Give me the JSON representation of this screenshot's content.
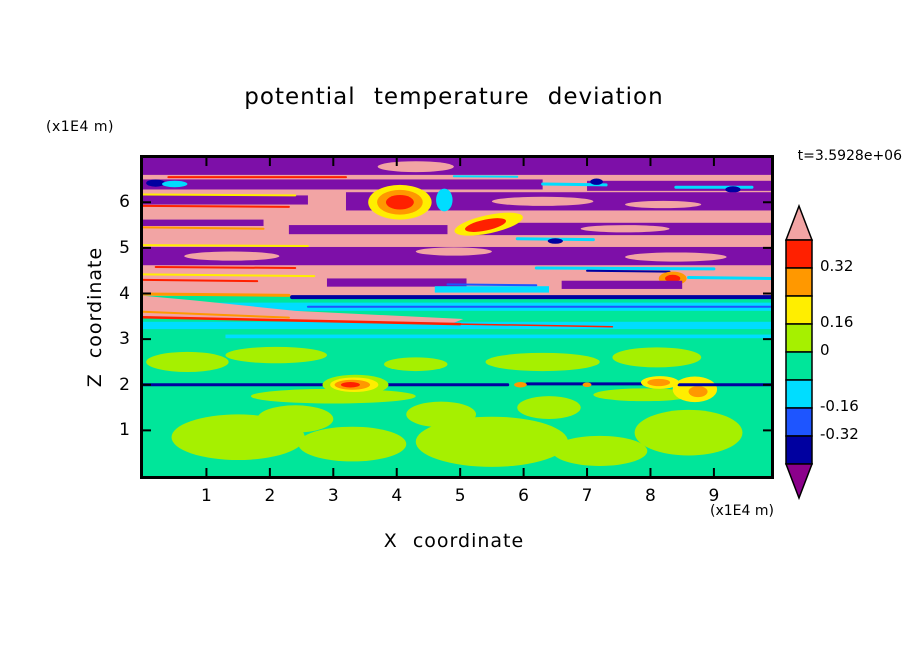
{
  "palette": {
    "salmon": "#f2a4a4",
    "red": "#ff2000",
    "orange": "#ff9800",
    "yellow": "#ffee00",
    "greenyellow": "#a6f000",
    "springgreen": "#00e69a",
    "cyan": "#00ddff",
    "blue": "#1e55ff",
    "navy": "#0000a0",
    "purple": "#7d0fa8",
    "magenta_purple": "#8b008b",
    "frame": "#000000",
    "background": "#ffffff"
  },
  "chart_data": {
    "type": "heatmap",
    "title": "potential temperature deviation",
    "xlabel": "X coordinate",
    "ylabel": "Z coordinate",
    "x_unit_label": "(x1E4 m)",
    "y_unit_label": "(x1E4 m)",
    "timestamp": "t=3.5928e+06",
    "xlim": [
      0,
      9.9
    ],
    "zlim": [
      0,
      6.97
    ],
    "x_ticks": [
      1,
      2,
      3,
      4,
      5,
      6,
      7,
      8,
      9
    ],
    "y_ticks": [
      1,
      2,
      3,
      4,
      5,
      6
    ],
    "grid": false,
    "colorbar": {
      "orientation": "vertical",
      "position": "right",
      "segments": [
        "red",
        "orange",
        "yellow",
        "greenyellow",
        "springgreen",
        "cyan",
        "blue",
        "navy"
      ],
      "top_arrow": "salmon",
      "bottom_arrow": "magenta_purple",
      "labels": [
        {
          "text": "0.32",
          "boundary": 1
        },
        {
          "text": "0.16",
          "boundary": 3
        },
        {
          "text": "0",
          "boundary": 4
        },
        {
          "text": "-0.16",
          "boundary": 6
        },
        {
          "text": "-0.32",
          "boundary": 7
        }
      ]
    },
    "field_summary": [
      {
        "z_range": [
          0,
          1.9
        ],
        "value": "approx 0 to -0.16 (springgreen) with patches of 0 to +0.16 (greenyellow)"
      },
      {
        "z_range": [
          1.95,
          2.05
        ],
        "value": "thin interface below -0.32 (navy line) with localized warm anomalies above +0.32 (red/orange lenses near x=3.3 and x=8.1)"
      },
      {
        "z_range": [
          2.1,
          3.0
        ],
        "value": "approx 0 to -0.16 with scattered weak positive streaks"
      },
      {
        "z_range": [
          3.0,
          3.8
        ],
        "value": "cold bands -0.16 to -0.32 (cyan stripes) plus warm diagonal streak above +0.32 (salmon/red wedge from x=0,z=3.6 to x=5,z=3.35)"
      },
      {
        "z_range": [
          3.85,
          3.98
        ],
        "value": "interface below -0.32 (navy line from x=2.3 to right edge)"
      },
      {
        "z_range": [
          4.0,
          6.97
        ],
        "value": "breaking-wave layer: alternating bands above +0.4 (salmon) and strongly negative (purple), with thin fringes of red/orange/yellow and cyan/blue/navy along band edges"
      }
    ],
    "features": [
      {
        "type": "rect",
        "x1": 0,
        "z1": 0,
        "x2": 9.9,
        "z2": 3.95,
        "color": "springgreen"
      },
      {
        "type": "rect",
        "x1": 0,
        "z1": 3.95,
        "x2": 9.9,
        "z2": 6.97,
        "color": "salmon"
      },
      {
        "type": "ellipse",
        "cx": 1.5,
        "cz": 0.85,
        "rx": 1.05,
        "rz": 0.5,
        "color": "greenyellow"
      },
      {
        "type": "ellipse",
        "cx": 3.3,
        "cz": 0.7,
        "rx": 0.85,
        "rz": 0.38,
        "color": "greenyellow"
      },
      {
        "type": "ellipse",
        "cx": 2.4,
        "cz": 1.25,
        "rx": 0.6,
        "rz": 0.3,
        "color": "greenyellow"
      },
      {
        "type": "ellipse",
        "cx": 5.5,
        "cz": 0.75,
        "rx": 1.2,
        "rz": 0.55,
        "color": "greenyellow"
      },
      {
        "type": "ellipse",
        "cx": 4.7,
        "cz": 1.35,
        "rx": 0.55,
        "rz": 0.28,
        "color": "greenyellow"
      },
      {
        "type": "ellipse",
        "cx": 7.2,
        "cz": 0.55,
        "rx": 0.75,
        "rz": 0.33,
        "color": "greenyellow"
      },
      {
        "type": "ellipse",
        "cx": 8.6,
        "cz": 0.95,
        "rx": 0.85,
        "rz": 0.5,
        "color": "greenyellow"
      },
      {
        "type": "ellipse",
        "cx": 6.4,
        "cz": 1.5,
        "rx": 0.5,
        "rz": 0.25,
        "color": "greenyellow"
      },
      {
        "type": "ellipse",
        "cx": 0.7,
        "cz": 2.5,
        "rx": 0.65,
        "rz": 0.22,
        "color": "greenyellow"
      },
      {
        "type": "ellipse",
        "cx": 2.1,
        "cz": 2.65,
        "rx": 0.8,
        "rz": 0.18,
        "color": "greenyellow"
      },
      {
        "type": "ellipse",
        "cx": 4.3,
        "cz": 2.45,
        "rx": 0.5,
        "rz": 0.15,
        "color": "greenyellow"
      },
      {
        "type": "ellipse",
        "cx": 6.3,
        "cz": 2.5,
        "rx": 0.9,
        "rz": 0.2,
        "color": "greenyellow"
      },
      {
        "type": "ellipse",
        "cx": 8.1,
        "cz": 2.6,
        "rx": 0.7,
        "rz": 0.22,
        "color": "greenyellow"
      },
      {
        "type": "ellipse",
        "cx": 3.0,
        "cz": 1.75,
        "rx": 1.3,
        "rz": 0.16,
        "color": "greenyellow"
      },
      {
        "type": "ellipse",
        "cx": 7.9,
        "cz": 1.78,
        "rx": 0.8,
        "rz": 0.14,
        "color": "greenyellow"
      },
      {
        "type": "ellipse",
        "cx": 8.7,
        "cz": 1.9,
        "rx": 0.35,
        "rz": 0.28,
        "color": "yellow"
      },
      {
        "type": "ellipse",
        "cx": 8.75,
        "cz": 1.85,
        "rx": 0.15,
        "rz": 0.12,
        "color": "orange"
      },
      {
        "type": "line",
        "x1": 0,
        "z1": 2.0,
        "x2": 2.95,
        "z2": 2.0,
        "w": 3,
        "color": "navy"
      },
      {
        "type": "line",
        "x1": 3.75,
        "z1": 2.0,
        "x2": 5.75,
        "z2": 2.0,
        "w": 3,
        "color": "navy"
      },
      {
        "type": "line",
        "x1": 6.05,
        "z1": 2.02,
        "x2": 7.9,
        "z2": 2.02,
        "w": 3,
        "color": "navy"
      },
      {
        "type": "line",
        "x1": 8.45,
        "z1": 2.0,
        "x2": 9.9,
        "z2": 2.0,
        "w": 3,
        "color": "navy"
      },
      {
        "type": "ellipse",
        "cx": 3.35,
        "cz": 2.0,
        "rx": 0.52,
        "rz": 0.22,
        "color": "greenyellow"
      },
      {
        "type": "ellipse",
        "cx": 3.33,
        "cz": 2.0,
        "rx": 0.38,
        "rz": 0.16,
        "color": "yellow"
      },
      {
        "type": "ellipse",
        "cx": 3.3,
        "cz": 2.0,
        "rx": 0.28,
        "rz": 0.11,
        "color": "orange"
      },
      {
        "type": "ellipse",
        "cx": 3.27,
        "cz": 2.0,
        "rx": 0.15,
        "rz": 0.06,
        "color": "red"
      },
      {
        "type": "ellipse",
        "cx": 8.15,
        "cz": 2.05,
        "rx": 0.3,
        "rz": 0.14,
        "color": "yellow"
      },
      {
        "type": "ellipse",
        "cx": 8.13,
        "cz": 2.05,
        "rx": 0.18,
        "rz": 0.08,
        "color": "orange"
      },
      {
        "type": "ellipse",
        "cx": 5.95,
        "cz": 2.0,
        "rx": 0.1,
        "rz": 0.06,
        "color": "orange"
      },
      {
        "type": "ellipse",
        "cx": 7.0,
        "cz": 2.0,
        "rx": 0.07,
        "rz": 0.05,
        "color": "orange"
      },
      {
        "type": "rect",
        "x1": 0,
        "z1": 3.62,
        "x2": 9.9,
        "z2": 3.8,
        "color": "cyan"
      },
      {
        "type": "rect",
        "x1": 0,
        "z1": 3.22,
        "x2": 9.9,
        "z2": 3.38,
        "color": "cyan"
      },
      {
        "type": "rect",
        "x1": 1.3,
        "z1": 3.02,
        "x2": 9.9,
        "z2": 3.1,
        "color": "cyan"
      },
      {
        "type": "line",
        "x1": 2.6,
        "z1": 3.71,
        "x2": 9.9,
        "z2": 3.71,
        "w": 2,
        "color": "blue"
      },
      {
        "type": "poly",
        "pts": [
          [
            0,
            3.95
          ],
          [
            0,
            3.5
          ],
          [
            2.2,
            3.42
          ],
          [
            4.9,
            3.36
          ],
          [
            5.05,
            3.44
          ],
          [
            2.4,
            3.62
          ],
          [
            0.8,
            3.85
          ]
        ],
        "color": "salmon"
      },
      {
        "type": "line",
        "x1": 0,
        "z1": 3.48,
        "x2": 5.0,
        "z2": 3.33,
        "w": 2.5,
        "color": "red"
      },
      {
        "type": "line",
        "x1": 5.0,
        "z1": 3.33,
        "x2": 7.4,
        "z2": 3.27,
        "w": 1.5,
        "color": "red"
      },
      {
        "type": "line",
        "x1": 0,
        "z1": 3.6,
        "x2": 2.3,
        "z2": 3.47,
        "w": 2,
        "color": "orange"
      },
      {
        "type": "line",
        "x1": 2.35,
        "z1": 3.92,
        "x2": 9.9,
        "z2": 3.92,
        "w": 4,
        "color": "navy"
      },
      {
        "type": "line",
        "x1": 0,
        "z1": 3.99,
        "x2": 2.3,
        "z2": 3.96,
        "w": 3,
        "color": "orange"
      },
      {
        "type": "rect",
        "x1": 0,
        "z1": 6.6,
        "x2": 9.9,
        "z2": 6.97,
        "color": "purple"
      },
      {
        "type": "ellipse",
        "cx": 4.3,
        "cz": 6.78,
        "rx": 0.6,
        "rz": 0.12,
        "color": "salmon"
      },
      {
        "type": "rect",
        "x1": 0,
        "z1": 6.28,
        "x2": 6.3,
        "z2": 6.5,
        "color": "purple"
      },
      {
        "type": "rect",
        "x1": 7.0,
        "z1": 6.25,
        "x2": 9.9,
        "z2": 6.47,
        "color": "purple"
      },
      {
        "type": "line",
        "x1": 6.3,
        "z1": 6.4,
        "x2": 7.3,
        "z2": 6.38,
        "w": 3,
        "color": "cyan"
      },
      {
        "type": "ellipse",
        "cx": 7.15,
        "cz": 6.45,
        "rx": 0.1,
        "rz": 0.07,
        "color": "navy"
      },
      {
        "type": "line",
        "x1": 8.4,
        "z1": 6.33,
        "x2": 9.6,
        "z2": 6.33,
        "w": 3,
        "color": "cyan"
      },
      {
        "type": "ellipse",
        "cx": 9.3,
        "cz": 6.28,
        "rx": 0.12,
        "rz": 0.07,
        "color": "navy"
      },
      {
        "type": "line",
        "x1": 0.4,
        "z1": 6.55,
        "x2": 3.2,
        "z2": 6.55,
        "w": 2,
        "color": "red"
      },
      {
        "type": "line",
        "x1": 4.9,
        "z1": 6.57,
        "x2": 5.9,
        "z2": 6.56,
        "w": 2,
        "color": "cyan"
      },
      {
        "type": "ellipse",
        "cx": 0.2,
        "cz": 6.42,
        "rx": 0.15,
        "rz": 0.08,
        "color": "navy"
      },
      {
        "type": "ellipse",
        "cx": 0.5,
        "cz": 6.4,
        "rx": 0.2,
        "rz": 0.07,
        "color": "cyan"
      },
      {
        "type": "rect",
        "x1": 0,
        "z1": 5.95,
        "x2": 2.6,
        "z2": 6.15,
        "color": "purple"
      },
      {
        "type": "rect",
        "x1": 3.2,
        "z1": 5.82,
        "x2": 9.9,
        "z2": 6.22,
        "color": "purple"
      },
      {
        "type": "ellipse",
        "cx": 6.3,
        "cz": 6.02,
        "rx": 0.8,
        "rz": 0.1,
        "color": "salmon"
      },
      {
        "type": "ellipse",
        "cx": 8.2,
        "cz": 5.95,
        "rx": 0.6,
        "rz": 0.08,
        "color": "salmon"
      },
      {
        "type": "line",
        "x1": 0,
        "z1": 6.17,
        "x2": 2.4,
        "z2": 6.15,
        "w": 2,
        "color": "yellow"
      },
      {
        "type": "line",
        "x1": 0,
        "z1": 5.92,
        "x2": 2.3,
        "z2": 5.9,
        "w": 2,
        "color": "red"
      },
      {
        "type": "ellipse",
        "cx": 4.05,
        "cz": 6.0,
        "rx": 0.5,
        "rz": 0.38,
        "color": "yellow"
      },
      {
        "type": "ellipse",
        "cx": 4.05,
        "cz": 6.0,
        "rx": 0.36,
        "rz": 0.27,
        "color": "orange"
      },
      {
        "type": "ellipse",
        "cx": 4.05,
        "cz": 6.0,
        "rx": 0.22,
        "rz": 0.16,
        "color": "red"
      },
      {
        "type": "ellipse",
        "cx": 4.75,
        "cz": 6.05,
        "rx": 0.13,
        "rz": 0.25,
        "color": "cyan"
      },
      {
        "type": "rect",
        "x1": 0,
        "z1": 5.48,
        "x2": 1.9,
        "z2": 5.62,
        "color": "purple"
      },
      {
        "type": "rect",
        "x1": 2.3,
        "z1": 5.3,
        "x2": 4.8,
        "z2": 5.5,
        "color": "purple"
      },
      {
        "type": "rect",
        "x1": 5.1,
        "z1": 5.28,
        "x2": 9.9,
        "z2": 5.55,
        "color": "purple"
      },
      {
        "type": "ellipse",
        "cx": 7.6,
        "cz": 5.42,
        "rx": 0.7,
        "rz": 0.08,
        "color": "salmon"
      },
      {
        "type": "ellipse",
        "cx": 5.45,
        "cz": 5.52,
        "rx": 0.55,
        "rz": 0.2,
        "rot": -12,
        "color": "yellow"
      },
      {
        "type": "ellipse",
        "cx": 5.4,
        "cz": 5.5,
        "rx": 0.33,
        "rz": 0.12,
        "rot": -12,
        "color": "red"
      },
      {
        "type": "line",
        "x1": 5.9,
        "z1": 5.2,
        "x2": 7.1,
        "z2": 5.18,
        "w": 3,
        "color": "cyan"
      },
      {
        "type": "ellipse",
        "cx": 6.5,
        "cz": 5.15,
        "rx": 0.12,
        "rz": 0.06,
        "color": "navy"
      },
      {
        "type": "line",
        "x1": 0,
        "z1": 5.45,
        "x2": 1.9,
        "z2": 5.42,
        "w": 2,
        "color": "orange"
      },
      {
        "type": "rect",
        "x1": 0,
        "z1": 4.62,
        "x2": 9.9,
        "z2": 5.02,
        "color": "purple"
      },
      {
        "type": "ellipse",
        "cx": 1.4,
        "cz": 4.82,
        "rx": 0.75,
        "rz": 0.1,
        "color": "salmon"
      },
      {
        "type": "ellipse",
        "cx": 4.9,
        "cz": 4.92,
        "rx": 0.6,
        "rz": 0.09,
        "color": "salmon"
      },
      {
        "type": "ellipse",
        "cx": 8.4,
        "cz": 4.8,
        "rx": 0.8,
        "rz": 0.1,
        "color": "salmon"
      },
      {
        "type": "line",
        "x1": 0,
        "z1": 5.06,
        "x2": 2.6,
        "z2": 5.04,
        "w": 2,
        "color": "yellow"
      },
      {
        "type": "line",
        "x1": 0.2,
        "z1": 4.58,
        "x2": 2.4,
        "z2": 4.56,
        "w": 2,
        "color": "red"
      },
      {
        "type": "line",
        "x1": 6.2,
        "z1": 4.56,
        "x2": 9.0,
        "z2": 4.54,
        "w": 3,
        "color": "cyan"
      },
      {
        "type": "line",
        "x1": 7.0,
        "z1": 4.5,
        "x2": 8.3,
        "z2": 4.48,
        "w": 2,
        "color": "navy"
      },
      {
        "type": "ellipse",
        "cx": 8.35,
        "cz": 4.33,
        "rx": 0.22,
        "rz": 0.15,
        "color": "orange"
      },
      {
        "type": "ellipse",
        "cx": 8.35,
        "cz": 4.33,
        "rx": 0.12,
        "rz": 0.08,
        "color": "red"
      },
      {
        "type": "rect",
        "x1": 2.9,
        "z1": 4.15,
        "x2": 5.1,
        "z2": 4.33,
        "color": "purple"
      },
      {
        "type": "rect",
        "x1": 6.6,
        "z1": 4.1,
        "x2": 8.5,
        "z2": 4.28,
        "color": "purple"
      },
      {
        "type": "rect",
        "x1": 4.6,
        "z1": 4.02,
        "x2": 6.4,
        "z2": 4.16,
        "color": "cyan"
      },
      {
        "type": "line",
        "x1": 4.8,
        "z1": 4.2,
        "x2": 6.2,
        "z2": 4.18,
        "w": 2,
        "color": "blue"
      },
      {
        "type": "line",
        "x1": 0,
        "z1": 4.42,
        "x2": 2.7,
        "z2": 4.38,
        "w": 2,
        "color": "yellow"
      },
      {
        "type": "line",
        "x1": 0,
        "z1": 4.3,
        "x2": 1.8,
        "z2": 4.27,
        "w": 2,
        "color": "red"
      },
      {
        "type": "line",
        "x1": 8.6,
        "z1": 4.35,
        "x2": 9.9,
        "z2": 4.33,
        "w": 3,
        "color": "cyan"
      }
    ]
  }
}
